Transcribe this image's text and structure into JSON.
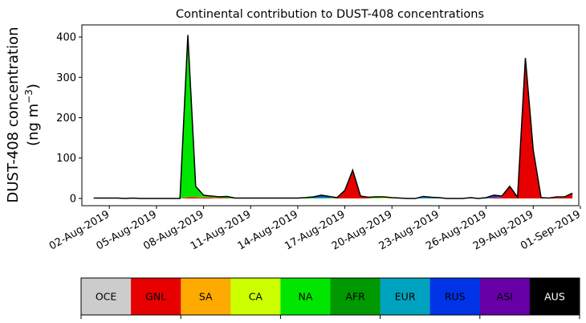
{
  "chart_data": {
    "type": "area",
    "title": "Continental contribution to DUST-408 concentrations",
    "ylabel_line1": "DUST-408 concentration",
    "ylabel_line2": "(ng m",
    "ylabel_unit_exp": "−3",
    "ylabel_line2_end": ")",
    "ylim": [
      -18,
      430
    ],
    "yticks": [
      0,
      100,
      200,
      300,
      400
    ],
    "xlim": [
      -0.75,
      30.9
    ],
    "xticks": [
      {
        "day": 1,
        "label": "02-Aug-2019"
      },
      {
        "day": 4,
        "label": "05-Aug-2019"
      },
      {
        "day": 7,
        "label": "08-Aug-2019"
      },
      {
        "day": 10,
        "label": "11-Aug-2019"
      },
      {
        "day": 13,
        "label": "14-Aug-2019"
      },
      {
        "day": 16,
        "label": "17-Aug-2019"
      },
      {
        "day": 19,
        "label": "20-Aug-2019"
      },
      {
        "day": 22,
        "label": "23-Aug-2019"
      },
      {
        "day": 25,
        "label": "26-Aug-2019"
      },
      {
        "day": 28,
        "label": "29-Aug-2019"
      },
      {
        "day": 31,
        "label": "01-Sep-2019"
      }
    ],
    "x_days": [
      0,
      0.5,
      1,
      1.5,
      2,
      2.5,
      3,
      3.5,
      4,
      4.5,
      5,
      5.5,
      6,
      6.5,
      7,
      7.5,
      8,
      8.5,
      9,
      9.5,
      10,
      10.5,
      11,
      11.5,
      12,
      12.5,
      13,
      13.5,
      14,
      14.5,
      15,
      15.5,
      16,
      16.5,
      17,
      17.5,
      18,
      18.5,
      19,
      19.5,
      20,
      20.5,
      21,
      21.5,
      22,
      22.5,
      23,
      23.5,
      24,
      24.5,
      25,
      25.5,
      26,
      26.5,
      27,
      27.5,
      28,
      28.5,
      29,
      29.5,
      30,
      30.5
    ],
    "series": [
      {
        "key": "GNL",
        "values": [
          0,
          0,
          0,
          0,
          0,
          0,
          0,
          0,
          0,
          0,
          0,
          0,
          3,
          3,
          2,
          2,
          1,
          1,
          0,
          0,
          0,
          0,
          0,
          0,
          0,
          0,
          0,
          0,
          0,
          0,
          0,
          1,
          20,
          70,
          5,
          1,
          0,
          0,
          0,
          0,
          0,
          0,
          0,
          0,
          0,
          0,
          0,
          0,
          0,
          0,
          0,
          2,
          3,
          30,
          3,
          348,
          120,
          2,
          1,
          2,
          2,
          12
        ]
      },
      {
        "key": "SA",
        "values": [
          0,
          0,
          0,
          0,
          0,
          0,
          0,
          0,
          0,
          0,
          0,
          0,
          1,
          1,
          1,
          1,
          1,
          0,
          0,
          0,
          0,
          0,
          0,
          0,
          0,
          0,
          0,
          0,
          0,
          0,
          0,
          0,
          0,
          0,
          0,
          0,
          0,
          0,
          0,
          0,
          0,
          0,
          0,
          0,
          0,
          0,
          0,
          0,
          0,
          0,
          0,
          0,
          0,
          0,
          0,
          0,
          0,
          0,
          0,
          0,
          0,
          0
        ]
      },
      {
        "key": "CA",
        "values": [
          0,
          0,
          0,
          0,
          0,
          0,
          0,
          0,
          0,
          0,
          0,
          0,
          0,
          0,
          0,
          0,
          0,
          0,
          0,
          0,
          0,
          0,
          0,
          0,
          0,
          0,
          0,
          0,
          0,
          0,
          0,
          0,
          0,
          0,
          0,
          1,
          1,
          2,
          1,
          1,
          0,
          0,
          0,
          0,
          0,
          0,
          0,
          0,
          0,
          0,
          0,
          0,
          0,
          0,
          0,
          0,
          0,
          0,
          0,
          1,
          1,
          1
        ]
      },
      {
        "key": "NA",
        "values": [
          1,
          1,
          1,
          1,
          0,
          1,
          0,
          0,
          0,
          0,
          0,
          0,
          400,
          25,
          5,
          3,
          2,
          4,
          1,
          1,
          1,
          1,
          1,
          1,
          1,
          1,
          1,
          1,
          1,
          1,
          1,
          1,
          0,
          0,
          1,
          1,
          2,
          1,
          1,
          0,
          0,
          0,
          0,
          0,
          1,
          0,
          0,
          0,
          0,
          0,
          0,
          0,
          0,
          0,
          0,
          0,
          0,
          0,
          0,
          1,
          1,
          0
        ]
      },
      {
        "key": "AFR",
        "values": [
          0,
          0,
          0,
          0,
          0,
          0,
          0,
          0,
          0,
          0,
          0,
          0,
          1,
          1,
          0,
          0,
          0,
          0,
          0,
          0,
          0,
          0,
          0,
          0,
          0,
          0,
          0,
          0,
          0,
          0,
          0,
          0,
          0,
          0,
          0,
          0,
          1,
          1,
          0,
          0,
          0,
          0,
          0,
          0,
          0,
          0,
          0,
          0,
          0,
          0,
          0,
          0,
          0,
          0,
          0,
          0,
          0,
          0,
          0,
          0,
          0,
          0
        ]
      },
      {
        "key": "EUR",
        "values": [
          0,
          0,
          0,
          0,
          0,
          0,
          0,
          0,
          0,
          0,
          0,
          0,
          0,
          0,
          0,
          0,
          0,
          0,
          0,
          0,
          0,
          0,
          0,
          0,
          0,
          0,
          0,
          1,
          1,
          2,
          2,
          0,
          0,
          0,
          0,
          0,
          0,
          0,
          0,
          0,
          0,
          0,
          3,
          2,
          1,
          0,
          0,
          0,
          1,
          0,
          1,
          1,
          1,
          0,
          0,
          0,
          0,
          0,
          0,
          0,
          0,
          0
        ]
      },
      {
        "key": "RUS",
        "values": [
          0,
          0,
          0,
          0,
          0,
          0,
          0,
          0,
          0,
          0,
          0,
          0,
          0,
          0,
          0,
          0,
          0,
          0,
          0,
          0,
          0,
          0,
          0,
          0,
          0,
          0,
          0,
          0,
          1,
          3,
          1,
          0,
          0,
          0,
          0,
          0,
          0,
          0,
          0,
          0,
          0,
          0,
          2,
          1,
          0,
          0,
          0,
          0,
          1,
          0,
          0,
          2,
          1,
          0,
          0,
          0,
          0,
          0,
          0,
          0,
          0,
          0
        ]
      },
      {
        "key": "ASI",
        "values": [
          0,
          0,
          0,
          0,
          0,
          0,
          0,
          0,
          0,
          0,
          0,
          0,
          0,
          0,
          0,
          0,
          0,
          0,
          0,
          0,
          0,
          0,
          0,
          0,
          0,
          0,
          0,
          0,
          1,
          2,
          1,
          0,
          0,
          0,
          0,
          0,
          0,
          0,
          0,
          0,
          0,
          0,
          0,
          0,
          0,
          0,
          0,
          0,
          0,
          0,
          1,
          3,
          1,
          0,
          0,
          0,
          0,
          0,
          0,
          0,
          0,
          0
        ]
      }
    ],
    "legend": [
      {
        "label": "OCE",
        "color": "#cccccc",
        "text_color": "#000000"
      },
      {
        "label": "GNL",
        "color": "#e60000",
        "text_color": "#000000"
      },
      {
        "label": "SA",
        "color": "#ffaa00",
        "text_color": "#000000"
      },
      {
        "label": "CA",
        "color": "#ccff00",
        "text_color": "#000000"
      },
      {
        "label": "NA",
        "color": "#00e600",
        "text_color": "#000000"
      },
      {
        "label": "AFR",
        "color": "#009900",
        "text_color": "#000000"
      },
      {
        "label": "EUR",
        "color": "#00a3bf",
        "text_color": "#000000"
      },
      {
        "label": "RUS",
        "color": "#0033e6",
        "text_color": "#000000"
      },
      {
        "label": "ASI",
        "color": "#6600a6",
        "text_color": "#000000"
      },
      {
        "label": "AUS",
        "color": "#000000",
        "text_color": "#ffffff"
      }
    ],
    "grid": false
  }
}
